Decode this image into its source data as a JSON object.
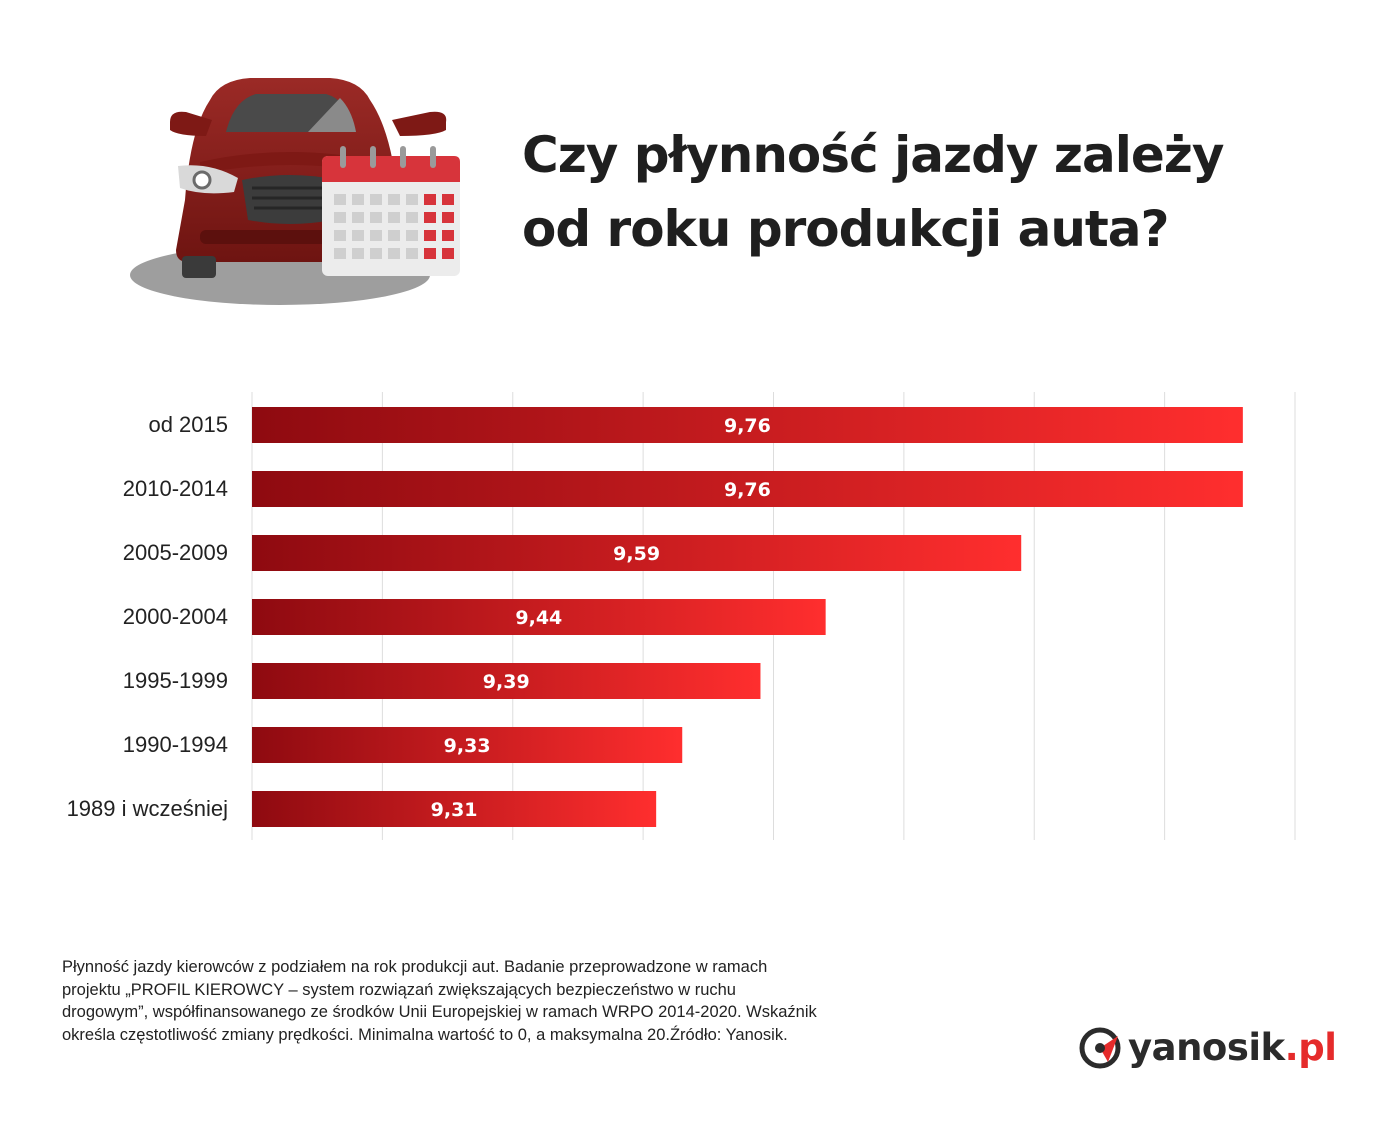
{
  "title": {
    "line1": "Czy płynność jazdy zależy",
    "line2": "od roku produkcji auta?"
  },
  "illustration": {
    "icon": "car-with-calendar-icon"
  },
  "colors": {
    "bar_dark": "#8e0a10",
    "bar_light": "#ff2e2e",
    "grid": "#dddddd",
    "brand_red": "#e52b2b"
  },
  "chart_data": {
    "type": "bar",
    "orientation": "horizontal",
    "categories": [
      "od 2015",
      "2010-2014",
      "2005-2009",
      "2000-2004",
      "1995-1999",
      "1990-1994",
      "1989 i wcześniej"
    ],
    "values": [
      9.76,
      9.76,
      9.59,
      9.44,
      9.39,
      9.33,
      9.31
    ],
    "value_labels": [
      "9,76",
      "9,76",
      "9,59",
      "9,44",
      "9,39",
      "9,33",
      "9,31"
    ],
    "xlim": [
      9.0,
      9.8
    ],
    "grid": true,
    "legend": false
  },
  "footnote": {
    "lines": [
      "Płynność jazdy kierowców z podziałem na rok produkcji aut. Badanie przeprowadzone w ramach",
      "projektu „PROFIL KIEROWCY – system rozwiązań zwiększających bezpieczeństwo w ruchu",
      "drogowym”, współfinansowanego ze środków Unii Europejskiej w ramach WRPO 2014-2020. Wskaźnik",
      "określa częstotliwość zmiany prędkości. Minimalna wartość to 0, a maksymalna 20.Źródło: Yanosik."
    ]
  },
  "logo": {
    "main": "yanosik",
    "dot": ".",
    "tld": "pl",
    "icon": "yanosik-logo-icon"
  }
}
